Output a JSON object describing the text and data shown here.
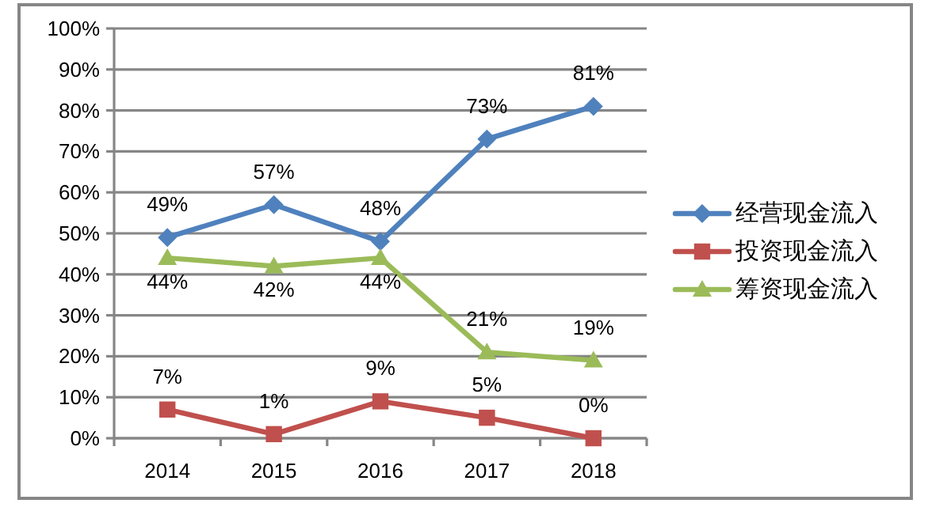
{
  "chart_data": {
    "type": "line",
    "categories": [
      "2014",
      "2015",
      "2016",
      "2017",
      "2018"
    ],
    "series": [
      {
        "name": "经营现金流入",
        "color": "#4f81bd",
        "marker": "diamond",
        "values": [
          49,
          57,
          48,
          73,
          81
        ],
        "value_labels": [
          "49%",
          "57%",
          "48%",
          "73%",
          "81%"
        ]
      },
      {
        "name": "投资现金流入",
        "color": "#c0504d",
        "marker": "square",
        "values": [
          7,
          1,
          9,
          5,
          0
        ],
        "value_labels": [
          "7%",
          "1%",
          "9%",
          "5%",
          "0%"
        ]
      },
      {
        "name": "筹资现金流入",
        "color": "#9bbb59",
        "marker": "triangle",
        "values": [
          44,
          42,
          44,
          21,
          19
        ],
        "value_labels": [
          "44%",
          "42%",
          "44%",
          "21%",
          "19%"
        ]
      }
    ],
    "ylim": [
      0,
      100
    ],
    "yticks": [
      {
        "value": 0,
        "label": "0%"
      },
      {
        "value": 10,
        "label": "10%"
      },
      {
        "value": 20,
        "label": "20%"
      },
      {
        "value": 30,
        "label": "30%"
      },
      {
        "value": 40,
        "label": "40%"
      },
      {
        "value": 50,
        "label": "50%"
      },
      {
        "value": 60,
        "label": "60%"
      },
      {
        "value": 70,
        "label": "70%"
      },
      {
        "value": 80,
        "label": "80%"
      },
      {
        "value": 90,
        "label": "90%"
      },
      {
        "value": 100,
        "label": "100%"
      }
    ],
    "grid": "y",
    "legend": "right"
  }
}
